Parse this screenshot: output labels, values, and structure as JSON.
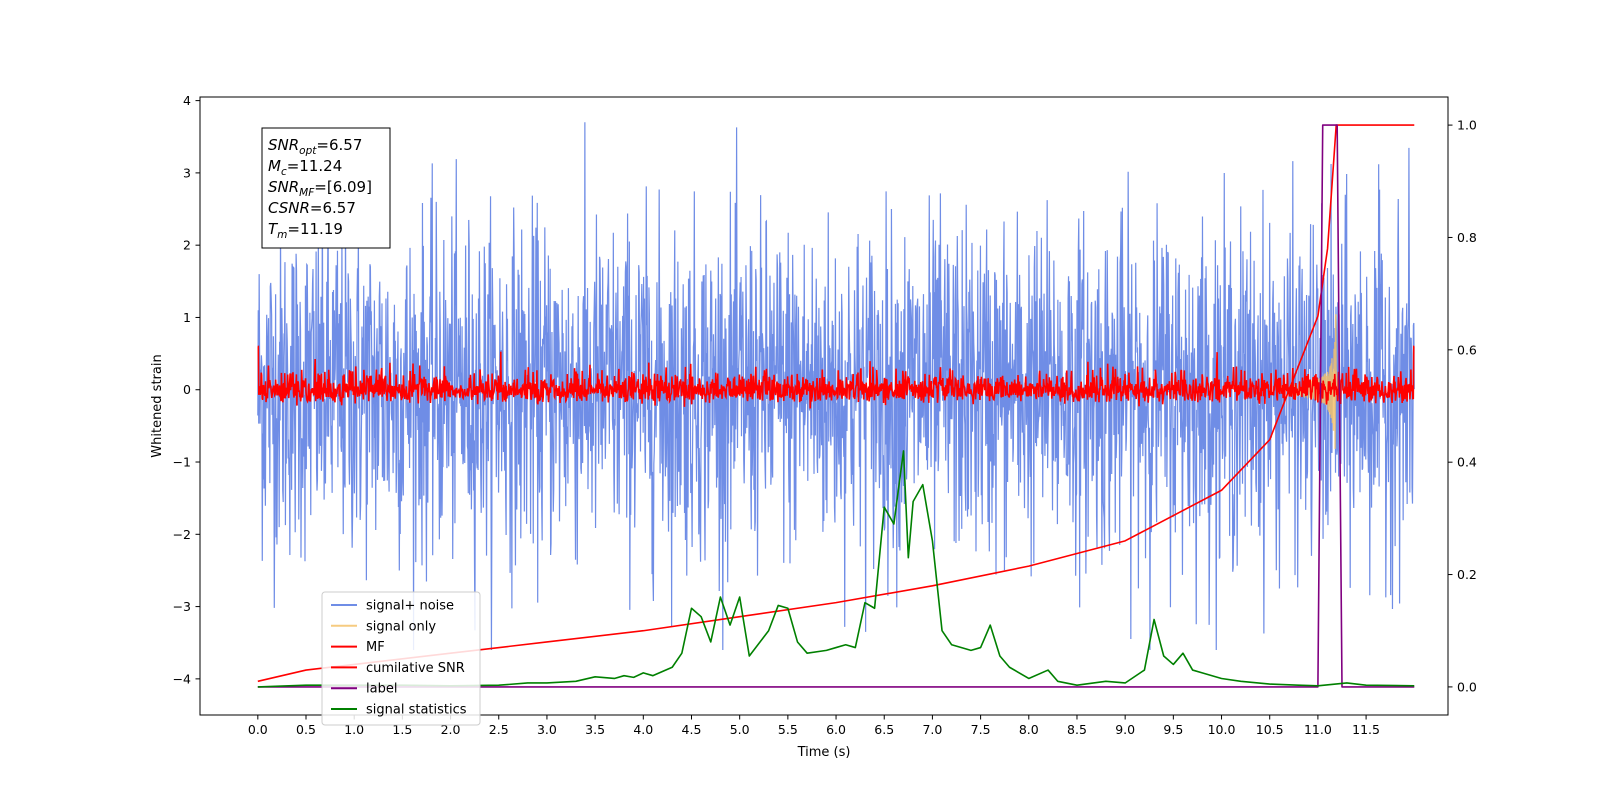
{
  "chart_data": {
    "type": "line",
    "xlabel": "Time (s)",
    "ylabel": "Whitened strain",
    "xlim": [
      -0.6,
      12.35
    ],
    "ylim": [
      -4.5,
      4.05
    ],
    "y2lim": [
      -0.05,
      1.05
    ],
    "x_ticks": [
      "0.0",
      "0.5",
      "1.0",
      "1.5",
      "2.0",
      "2.5",
      "3.0",
      "3.5",
      "4.0",
      "4.5",
      "5.0",
      "5.5",
      "6.0",
      "6.5",
      "7.0",
      "7.5",
      "8.0",
      "8.5",
      "9.0",
      "9.5",
      "10.0",
      "10.5",
      "11.0",
      "11.5"
    ],
    "y_ticks": [
      "4",
      "3",
      "2",
      "1",
      "0",
      "−1",
      "−2",
      "−3",
      "−4"
    ],
    "y2_ticks": [
      "1.0",
      "0.8",
      "0.6",
      "0.4",
      "0.2",
      "0.0"
    ],
    "grid": false,
    "legend_position": "lower-left",
    "info_box": [
      {
        "main": "SNR",
        "sub": "opt",
        "rest": "=6.57"
      },
      {
        "main": "M",
        "sub": "c",
        "rest": "=11.24"
      },
      {
        "main": "SNR",
        "sub": "MF",
        "rest": "=[6.09]"
      },
      {
        "main": "CSNR",
        "sub": "",
        "rest": "=6.57"
      },
      {
        "main": "T",
        "sub": "m",
        "rest": "=11.19"
      }
    ],
    "series": [
      {
        "name": "signal+ noise",
        "color": "#6f8de6",
        "axis": "left",
        "kind": "noise",
        "amplitude_range": [
          -3.6,
          3.7
        ]
      },
      {
        "name": "signal only",
        "color": "#f5c26b",
        "axis": "left",
        "kind": "chirp",
        "t_merge": 11.19,
        "peak": 1.0
      },
      {
        "name": "MF",
        "color": "#ff0000",
        "axis": "left",
        "kind": "noise",
        "amplitude_range": [
          -0.3,
          0.6
        ]
      },
      {
        "name": "cumilative SNR",
        "color": "#ff0000",
        "axis": "right",
        "x": [
          0.0,
          0.5,
          1.0,
          2.0,
          3.0,
          4.0,
          5.0,
          6.0,
          7.0,
          8.0,
          9.0,
          10.0,
          10.5,
          11.0,
          11.1,
          11.19,
          12.0
        ],
        "values": [
          0.01,
          0.03,
          0.04,
          0.06,
          0.08,
          0.1,
          0.125,
          0.15,
          0.18,
          0.215,
          0.26,
          0.35,
          0.44,
          0.66,
          0.78,
          1.0,
          1.0
        ]
      },
      {
        "name": "label",
        "color": "#800080",
        "axis": "right",
        "x": [
          0.0,
          11.0,
          11.05,
          11.2,
          11.25,
          12.0
        ],
        "values": [
          0,
          0,
          1,
          1,
          0,
          0
        ]
      },
      {
        "name": "signal statistics",
        "color": "#008000",
        "axis": "right",
        "x": [
          0.0,
          0.5,
          1.0,
          1.5,
          2.0,
          2.5,
          2.8,
          3.0,
          3.3,
          3.5,
          3.7,
          3.8,
          3.9,
          4.0,
          4.1,
          4.3,
          4.4,
          4.5,
          4.6,
          4.7,
          4.8,
          4.9,
          5.0,
          5.1,
          5.3,
          5.4,
          5.5,
          5.6,
          5.7,
          5.9,
          6.0,
          6.1,
          6.2,
          6.3,
          6.4,
          6.5,
          6.6,
          6.7,
          6.75,
          6.8,
          6.9,
          7.0,
          7.1,
          7.2,
          7.4,
          7.5,
          7.6,
          7.7,
          7.8,
          8.0,
          8.2,
          8.3,
          8.5,
          8.8,
          9.0,
          9.2,
          9.3,
          9.4,
          9.5,
          9.6,
          9.7,
          9.8,
          10.0,
          10.2,
          10.5,
          10.8,
          11.0,
          11.3,
          11.5,
          12.0
        ],
        "values": [
          0.0,
          0.003,
          0.003,
          0.003,
          0.002,
          0.003,
          0.007,
          0.007,
          0.01,
          0.018,
          0.015,
          0.02,
          0.017,
          0.025,
          0.02,
          0.035,
          0.06,
          0.14,
          0.125,
          0.08,
          0.16,
          0.11,
          0.16,
          0.055,
          0.1,
          0.145,
          0.14,
          0.08,
          0.06,
          0.065,
          0.07,
          0.075,
          0.07,
          0.15,
          0.14,
          0.32,
          0.29,
          0.42,
          0.23,
          0.33,
          0.36,
          0.26,
          0.1,
          0.075,
          0.065,
          0.07,
          0.11,
          0.055,
          0.035,
          0.015,
          0.03,
          0.01,
          0.003,
          0.01,
          0.007,
          0.03,
          0.12,
          0.055,
          0.04,
          0.06,
          0.03,
          0.025,
          0.015,
          0.01,
          0.005,
          0.003,
          0.002,
          0.007,
          0.003,
          0.002
        ]
      }
    ]
  }
}
